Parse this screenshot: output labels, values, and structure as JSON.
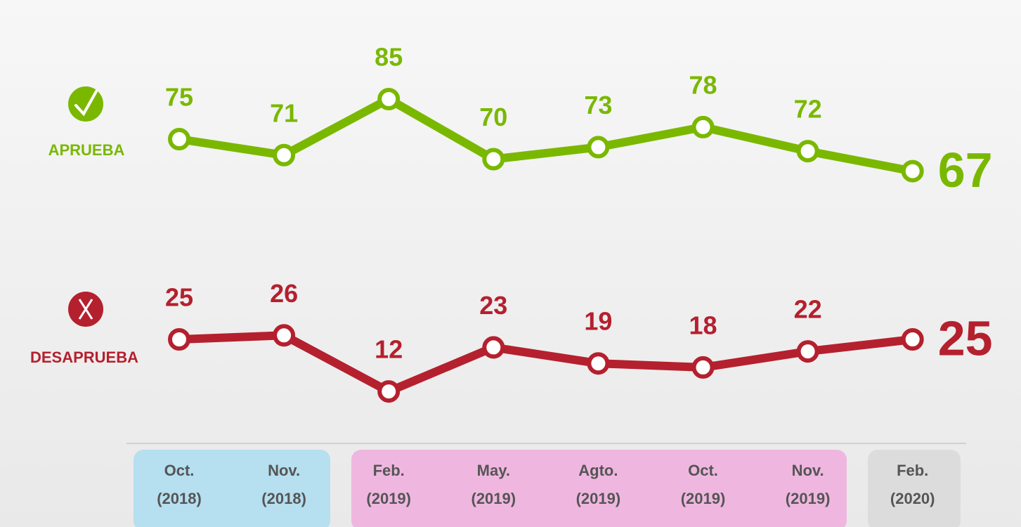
{
  "chart_data": {
    "type": "line",
    "categories": [
      "Oct.\n(2018)",
      "Nov.\n(2018)",
      "Feb.\n(2019)",
      "May.\n(2019)",
      "Agto.\n(2019)",
      "Oct.\n(2019)",
      "Nov.\n(2019)",
      "Feb.\n(2020)"
    ],
    "series": [
      {
        "name": "APRUEBA",
        "color": "#7ab800",
        "values": [
          75,
          71,
          85,
          70,
          73,
          78,
          72,
          67
        ]
      },
      {
        "name": "DESAPRUEBA",
        "color": "#b5202e",
        "values": [
          25,
          26,
          12,
          23,
          19,
          18,
          22,
          25
        ]
      }
    ]
  }
}
